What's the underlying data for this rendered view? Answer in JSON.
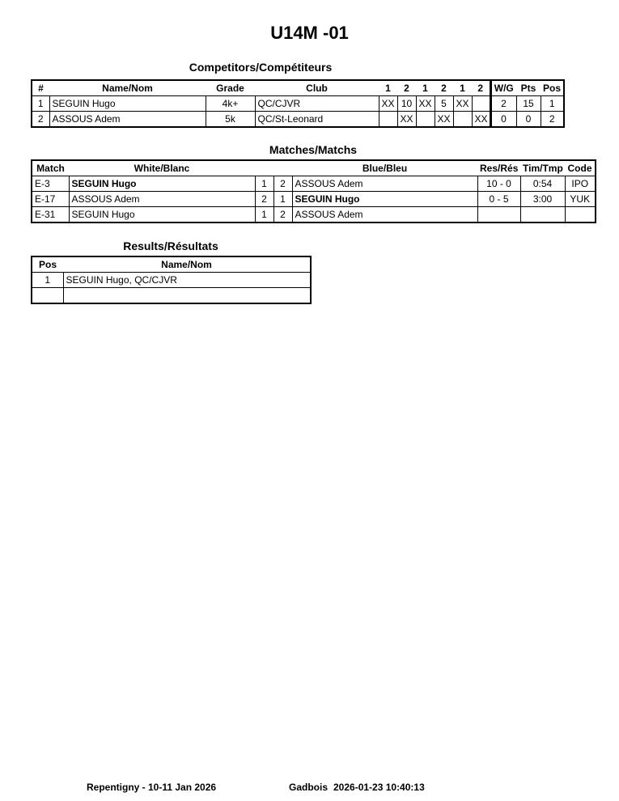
{
  "title": "U14M -01",
  "competitors": {
    "title": "Competitors/Compétiteurs",
    "headers": [
      "#",
      "Name/Nom",
      "Grade",
      "Club",
      "1",
      "2",
      "1",
      "2",
      "1",
      "2",
      "W/G",
      "Pts",
      "Pos"
    ],
    "rows": [
      [
        "1",
        "SEGUIN Hugo",
        "4k+",
        "QC/CJVR",
        "XX",
        "10",
        "XX",
        "5",
        "XX",
        "",
        "2",
        "15",
        "1"
      ],
      [
        "2",
        "ASSOUS Adem",
        "5k",
        "QC/St-Leonard",
        "",
        "XX",
        "",
        "XX",
        "",
        "XX",
        "0",
        "0",
        "2"
      ]
    ]
  },
  "matches": {
    "title": "Matches/Matchs",
    "headers": [
      "Match",
      "White/Blanc",
      "Blue/Bleu",
      "Res/Rés",
      "Tim/Tmp",
      "Code"
    ],
    "rows": [
      [
        "E-3",
        "SEGUIN Hugo",
        "1",
        "2",
        "ASSOUS Adem",
        "10 - 0",
        "0:54",
        "IPO"
      ],
      [
        "E-17",
        "ASSOUS Adem",
        "2",
        "1",
        "SEGUIN Hugo",
        "0 - 5",
        "3:00",
        "YUK"
      ],
      [
        "E-31",
        "SEGUIN Hugo",
        "1",
        "2",
        "ASSOUS Adem",
        "",
        "",
        ""
      ]
    ]
  },
  "results": {
    "title": "Results/Résultats",
    "headers": [
      "Pos",
      "Name/Nom"
    ],
    "rows": [
      [
        "1",
        "SEGUIN Hugo, QC/CJVR"
      ],
      [
        "",
        ""
      ]
    ]
  },
  "footer": {
    "event": "Repentigny - 10-11 Jan 2026",
    "user": "Gadbois",
    "timestamp": "2026-01-23 10:40:13"
  }
}
